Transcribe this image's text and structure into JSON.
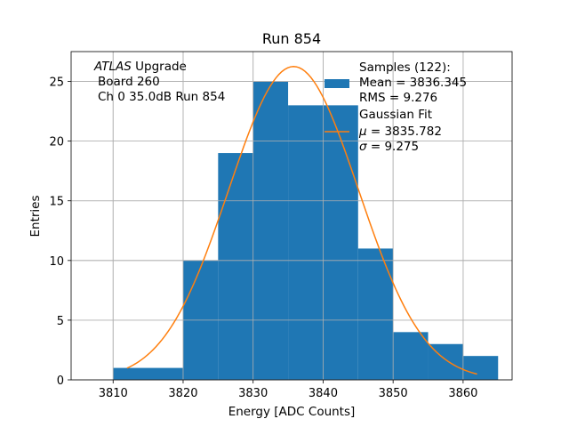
{
  "chart_data": {
    "type": "bar",
    "title": "Run 854",
    "xlabel": "Energy [ADC Counts]",
    "ylabel": "Entries",
    "xlim": [
      3804,
      3867
    ],
    "ylim": [
      0,
      27.5
    ],
    "xticks": [
      3810,
      3820,
      3830,
      3840,
      3850,
      3860
    ],
    "yticks": [
      0,
      5,
      10,
      15,
      20,
      25
    ],
    "grid": true,
    "bins": [
      {
        "x0": 3810,
        "x1": 3820,
        "count": 1
      },
      {
        "x0": 3820,
        "x1": 3825,
        "count": 10
      },
      {
        "x0": 3825,
        "x1": 3830,
        "count": 19
      },
      {
        "x0": 3830,
        "x1": 3835,
        "count": 25
      },
      {
        "x0": 3835,
        "x1": 3845,
        "count": 23
      },
      {
        "x0": 3845,
        "x1": 3850,
        "count": 11
      },
      {
        "x0": 3850,
        "x1": 3855,
        "count": 4
      },
      {
        "x0": 3855,
        "x1": 3860,
        "count": 3
      },
      {
        "x0": 3860,
        "x1": 3865,
        "count": 2
      }
    ],
    "fit": {
      "mu": 3835.782,
      "sigma": 9.275,
      "amplitude": 26.25,
      "x_range": [
        3812,
        3862
      ]
    },
    "legend_position": "top-right",
    "colors": {
      "hist": "#1f77b4",
      "fit": "#ff7f0e",
      "grid": "#b0b0b0"
    }
  },
  "annotation": {
    "line1_italic": "ATLAS",
    "line1_rest": " Upgrade",
    "line2": "Board 260",
    "line3": "Ch 0 35.0dB  Run 854"
  },
  "legend": {
    "samples_title": "Samples (122):",
    "samples_mean": "Mean = 3836.345",
    "samples_rms": "RMS = 9.276",
    "fit_title": "Gaussian Fit",
    "fit_mu_symbol": "μ",
    "fit_mu_value": " = 3835.782",
    "fit_sigma_symbol": "σ",
    "fit_sigma_value": " = 9.275"
  }
}
